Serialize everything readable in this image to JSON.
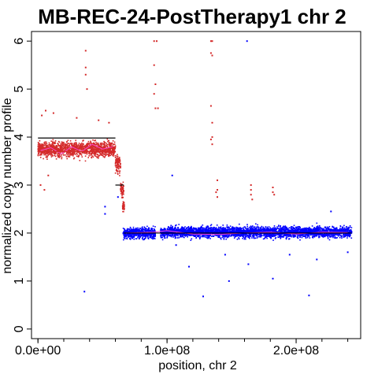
{
  "chart_data": {
    "type": "scatter",
    "title": "MB-REC-24-PostTherapy1 chr 2",
    "xlabel": "position, chr 2",
    "ylabel": "normalized copy number profile",
    "xlim": [
      -5000000,
      250000000
    ],
    "ylim": [
      -0.2,
      6.2
    ],
    "x_ticks": [
      {
        "value": 0,
        "label": "0.0e+00"
      },
      {
        "value": 100000000,
        "label": "1.0e+08"
      },
      {
        "value": 200000000,
        "label": "2.0e+08"
      }
    ],
    "y_ticks": [
      0,
      1,
      2,
      3,
      4,
      5,
      6
    ],
    "grid": false,
    "colors": {
      "gain": "#d42a2a",
      "neutral": "#0000ff",
      "segment_line": "#000000",
      "smooth_line": "#ff44cc"
    },
    "series": [
      {
        "type": "points",
        "color": "#d42a2a",
        "clusters": [
          {
            "x_range": [
              0,
              60000000
            ],
            "center": 3.75,
            "spread": 0.2
          },
          {
            "x_range": [
              60000000,
              64000000
            ],
            "center": 3.45,
            "spread": 0.25
          },
          {
            "x_range": [
              64000000,
              66500000
            ],
            "center": 2.9,
            "spread": 0.2
          },
          {
            "x_range": [
              65500000,
              67000000
            ],
            "center": 2.55,
            "spread": 0.12
          }
        ],
        "outliers": [
          [
            37000000,
            5.8
          ],
          [
            37000000,
            5.45
          ],
          [
            37000000,
            5.3
          ],
          [
            38000000,
            5.0
          ],
          [
            90000000,
            6.0
          ],
          [
            92000000,
            6.0
          ],
          [
            90000000,
            5.5
          ],
          [
            91000000,
            5.1
          ],
          [
            90000000,
            4.9
          ],
          [
            91000000,
            4.6
          ],
          [
            93000000,
            4.6
          ],
          [
            134000000,
            6.0
          ],
          [
            135000000,
            6.0
          ],
          [
            134000000,
            5.75
          ],
          [
            135000000,
            5.7
          ],
          [
            134000000,
            4.65
          ],
          [
            135000000,
            4.3
          ],
          [
            135000000,
            4.0
          ],
          [
            134000000,
            3.95
          ],
          [
            135000000,
            3.85
          ],
          [
            139000000,
            3.1
          ],
          [
            139000000,
            2.9
          ],
          [
            138000000,
            2.85
          ],
          [
            139000000,
            2.75
          ],
          [
            165000000,
            3.0
          ],
          [
            165000000,
            2.9
          ],
          [
            165000000,
            2.8
          ],
          [
            166000000,
            2.7
          ],
          [
            182000000,
            2.95
          ],
          [
            182000000,
            2.85
          ],
          [
            183000000,
            2.8
          ],
          [
            2000000,
            3.0
          ],
          [
            5000000,
            2.9
          ],
          [
            8000000,
            3.2
          ],
          [
            3000000,
            4.45
          ],
          [
            6000000,
            4.55
          ],
          [
            12000000,
            4.5
          ],
          [
            30000000,
            4.4
          ],
          [
            47000000,
            4.35
          ],
          [
            55000000,
            4.3
          ]
        ]
      },
      {
        "type": "points",
        "color": "#0000ff",
        "clusters": [
          {
            "x_range": [
              66000000,
              91000000
            ],
            "center": 2.0,
            "spread": 0.14
          },
          {
            "x_range": [
              95000000,
              243000000
            ],
            "center": 2.02,
            "spread": 0.14
          }
        ],
        "outliers": [
          [
            36000000,
            0.78
          ],
          [
            52000000,
            2.55
          ],
          [
            52000000,
            2.4
          ],
          [
            62000000,
            2.75
          ],
          [
            104000000,
            3.2
          ],
          [
            107000000,
            1.75
          ],
          [
            117000000,
            1.3
          ],
          [
            128000000,
            0.68
          ],
          [
            148000000,
            1.0
          ],
          [
            162000000,
            6.0
          ],
          [
            163000000,
            1.35
          ],
          [
            182000000,
            1.05
          ],
          [
            210000000,
            0.7
          ],
          [
            216000000,
            1.45
          ],
          [
            195000000,
            1.55
          ],
          [
            145000000,
            1.55
          ],
          [
            227000000,
            2.45
          ],
          [
            240000000,
            1.6
          ]
        ]
      }
    ],
    "segments": [
      {
        "x_range": [
          0,
          60000000
        ],
        "y": 3.98,
        "color": "#000000"
      },
      {
        "x_range": [
          0,
          60000000
        ],
        "y": 3.7,
        "color": "#d42a2a"
      },
      {
        "x_range": [
          60000000,
          66500000
        ],
        "y": 3.0,
        "color": "#000000"
      },
      {
        "x_range": [
          66500000,
          243000000
        ],
        "y": 2.0,
        "color": "#000000"
      }
    ],
    "smooth": [
      {
        "x": [
          2000000,
          10000000,
          18000000,
          26000000,
          34000000,
          42000000,
          50000000,
          58000000
        ],
        "y": [
          3.72,
          3.78,
          3.65,
          3.8,
          3.7,
          3.85,
          3.75,
          3.8
        ],
        "color": "#ff44cc"
      },
      {
        "x": [
          68000000,
          90000000,
          100000000,
          120000000,
          140000000,
          160000000,
          180000000,
          200000000,
          220000000,
          240000000
        ],
        "y": [
          2.0,
          2.02,
          2.05,
          1.98,
          1.97,
          2.0,
          2.02,
          1.98,
          2.02,
          2.01
        ],
        "color": "#ff44cc"
      }
    ]
  }
}
